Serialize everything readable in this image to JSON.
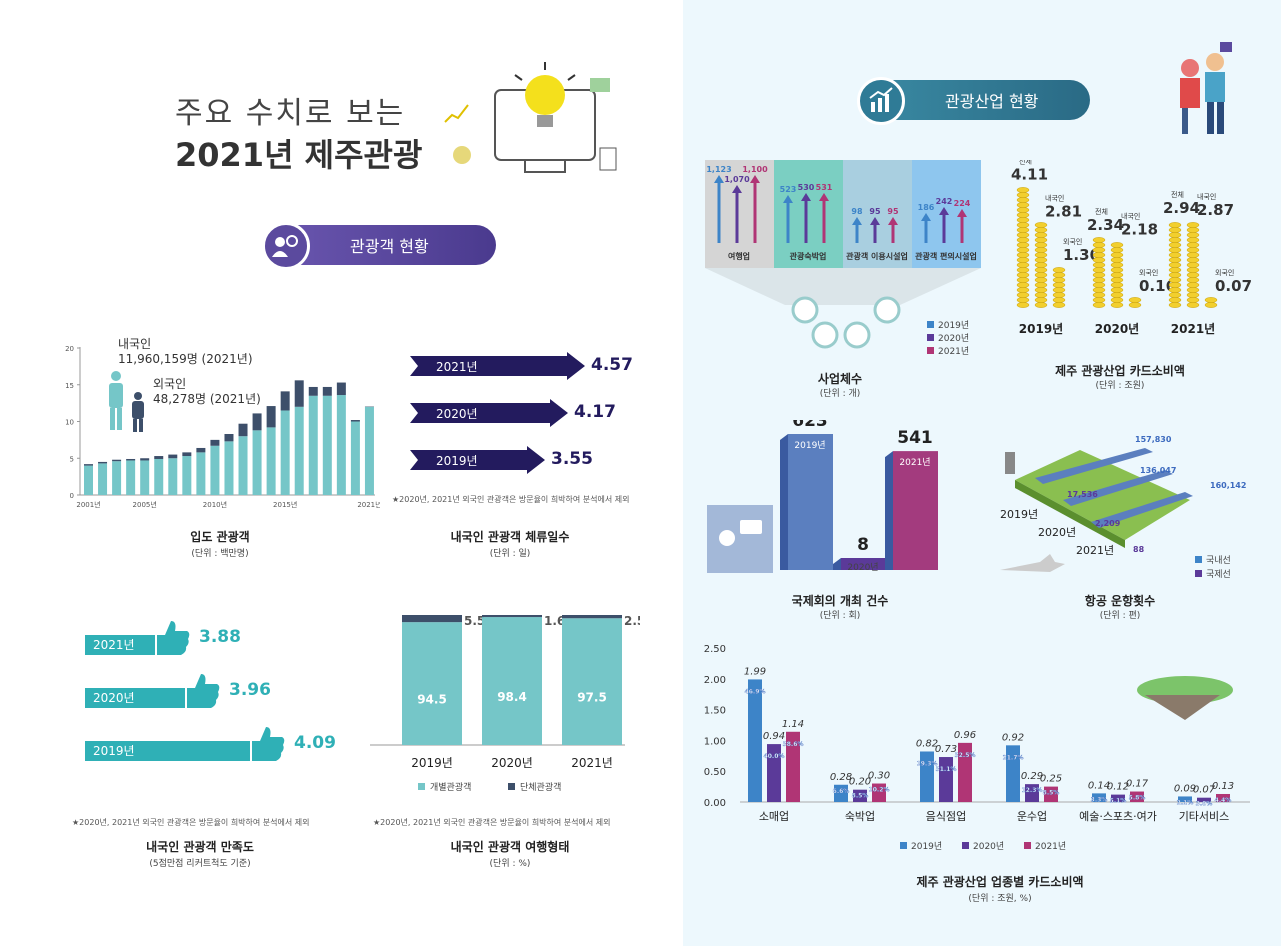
{
  "header": {
    "line1": "주요 수치로 보는",
    "line2": "2021년 제주관광"
  },
  "left_banner": "관광객 현황",
  "right_banner": "관광산업 현황",
  "colors": {
    "teal": "#75c6c8",
    "navy": "#3d4f6a",
    "purple": "#5b4a9e",
    "dark_navy": "#231b5e",
    "blue": "#3d84c8",
    "violet": "#5b3a99",
    "magenta": "#b03575"
  },
  "visitors": {
    "caption": "입도 관광객",
    "unit": "(단위 : 백만명)",
    "domestic_label": "내국인",
    "domestic_value": "11,960,159명 (2021년)",
    "foreign_label": "외국인",
    "foreign_value": "48,278명 (2021년)",
    "yticks": [
      "0",
      "5",
      "10",
      "15",
      "20"
    ],
    "xticks": [
      "2001년",
      "2005년",
      "2010년",
      "2015년",
      "2021년"
    ]
  },
  "chart_data": [
    {
      "type": "bar",
      "title": "입도 관광객",
      "ylabel": "백만명",
      "ylim": [
        0,
        20
      ],
      "categories": [
        "2001",
        "2002",
        "2003",
        "2004",
        "2005",
        "2006",
        "2007",
        "2008",
        "2009",
        "2010",
        "2011",
        "2012",
        "2013",
        "2014",
        "2015",
        "2016",
        "2017",
        "2018",
        "2019",
        "2020",
        "2021"
      ],
      "series": [
        {
          "name": "내국인",
          "values": [
            4.0,
            4.3,
            4.6,
            4.7,
            4.7,
            4.9,
            5.0,
            5.3,
            5.8,
            6.7,
            7.3,
            8.0,
            8.8,
            9.2,
            11.5,
            12.0,
            13.5,
            13.5,
            13.6,
            10.0,
            12.0
          ]
        },
        {
          "name": "외국인",
          "values": [
            0.2,
            0.2,
            0.2,
            0.2,
            0.3,
            0.4,
            0.5,
            0.5,
            0.6,
            0.8,
            1.0,
            1.7,
            2.3,
            2.9,
            2.6,
            3.6,
            1.2,
            1.2,
            1.7,
            0.2,
            0.05
          ]
        }
      ]
    },
    {
      "type": "bar",
      "title": "내국인 관광객 체류일수",
      "categories": [
        "2021년",
        "2020년",
        "2019년"
      ],
      "values": [
        4.57,
        4.17,
        3.55
      ]
    },
    {
      "type": "bar",
      "title": "내국인 관광객 만족도",
      "categories": [
        "2021년",
        "2020년",
        "2019년"
      ],
      "values": [
        3.88,
        3.96,
        4.09
      ]
    },
    {
      "type": "bar",
      "title": "내국인 관광객 여행형태",
      "categories": [
        "2019년",
        "2020년",
        "2021년"
      ],
      "series": [
        {
          "name": "개별관광객",
          "values": [
            94.5,
            98.4,
            97.5
          ]
        },
        {
          "name": "단체관광객",
          "values": [
            5.5,
            1.6,
            2.5
          ]
        }
      ],
      "ylim": [
        0,
        100
      ]
    },
    {
      "type": "bar",
      "title": "사업체수",
      "categories": [
        "여행업",
        "관광숙박업",
        "관광객 이용시설업",
        "관광객 편의시설업"
      ],
      "series": [
        {
          "name": "2019년",
          "values": [
            1123,
            523,
            98,
            186
          ]
        },
        {
          "name": "2020년",
          "values": [
            1070,
            530,
            95,
            242
          ]
        },
        {
          "name": "2021년",
          "values": [
            1100,
            531,
            95,
            224
          ]
        }
      ]
    },
    {
      "type": "bar",
      "title": "제주 관광산업 카드소비액",
      "categories": [
        "2019년",
        "2020년",
        "2021년"
      ],
      "series": [
        {
          "name": "전체",
          "values": [
            4.11,
            2.34,
            2.94
          ]
        },
        {
          "name": "내국인",
          "values": [
            2.81,
            2.18,
            2.87
          ]
        },
        {
          "name": "외국인",
          "values": [
            1.3,
            0.16,
            0.07
          ]
        }
      ]
    },
    {
      "type": "bar",
      "title": "국제회의 개최 건수",
      "categories": [
        "2019년",
        "2020년",
        "2021년"
      ],
      "values": [
        623,
        8,
        541
      ]
    },
    {
      "type": "bar",
      "title": "항공 운항횟수",
      "categories": [
        "2019년",
        "2020년",
        "2021년"
      ],
      "series": [
        {
          "name": "국내선",
          "values": [
            157830,
            136047,
            160142
          ]
        },
        {
          "name": "국제선",
          "values": [
            17536,
            2209,
            88
          ]
        }
      ]
    },
    {
      "type": "bar",
      "title": "제주 관광산업 업종별 카드소비액",
      "ylim": [
        0,
        2.5
      ],
      "categories": [
        "소매업",
        "숙박업",
        "음식점업",
        "운수업",
        "예술·스포츠·여가",
        "기타서비스"
      ],
      "series": [
        {
          "name": "2019년",
          "values": [
            1.99,
            0.28,
            0.82,
            0.92,
            0.14,
            0.09
          ],
          "pct": [
            "46.9%",
            "6.6%",
            "19.3%",
            "21.7%",
            "3.3%",
            "2.1%"
          ]
        },
        {
          "name": "2020년",
          "values": [
            0.94,
            0.2,
            0.73,
            0.29,
            0.12,
            0.07
          ],
          "pct": [
            "40.0%",
            "8.5%",
            "31.1%",
            "12.3%",
            "5.1%",
            "3.0%"
          ]
        },
        {
          "name": "2021년",
          "values": [
            1.14,
            0.3,
            0.96,
            0.25,
            0.17,
            0.13
          ],
          "pct": [
            "38.6%",
            "10.2%",
            "32.5%",
            "8.5%",
            "5.8%",
            "4.4%"
          ]
        }
      ]
    }
  ],
  "stay": {
    "caption": "내국인 관광객 체류일수",
    "unit": "(단위 : 일)",
    "note": "★2020년, 2021년 외국인 관광객은 방문율이 희박하여 분석에서 제외",
    "rows": [
      {
        "year": "2021년",
        "value": "4.57"
      },
      {
        "year": "2020년",
        "value": "4.17"
      },
      {
        "year": "2019년",
        "value": "3.55"
      }
    ]
  },
  "satisfaction": {
    "caption": "내국인 관광객 만족도",
    "unit": "(5점만점 리커트척도 기준)",
    "note": "★2020년, 2021년 외국인 관광객은 방문율이 희박하여 분석에서 제외",
    "rows": [
      {
        "year": "2021년",
        "value": "3.88"
      },
      {
        "year": "2020년",
        "value": "3.96"
      },
      {
        "year": "2019년",
        "value": "4.09"
      }
    ]
  },
  "travel": {
    "caption": "내국인 관광객 여행형태",
    "unit": "(단위 : %)",
    "note": "★2020년, 2021년 외국인 관광객은 방문율이 희박하여 분석에서 제외",
    "legend1": "개별관광객",
    "legend2": "단체관광객",
    "cols": [
      {
        "year": "2019년",
        "ind": "94.5",
        "grp": "5.5"
      },
      {
        "year": "2020년",
        "ind": "98.4",
        "grp": "1.6"
      },
      {
        "year": "2021년",
        "ind": "97.5",
        "grp": "2.5"
      }
    ]
  },
  "business": {
    "caption": "사업체수",
    "unit": "(단위 : 개)",
    "groups": [
      {
        "name": "여행업",
        "vals": [
          "1,123",
          "1,070",
          "1,100"
        ]
      },
      {
        "name": "관광숙박업",
        "vals": [
          "523",
          "530",
          "531"
        ]
      },
      {
        "name": "관광객 이용시설업",
        "vals": [
          "98",
          "95",
          "95"
        ]
      },
      {
        "name": "관광객 편의시설업",
        "vals": [
          "186",
          "242",
          "224"
        ]
      }
    ],
    "legend": [
      "2019년",
      "2020년",
      "2021년"
    ]
  },
  "card": {
    "caption": "제주 관광산업 카드소비액",
    "unit": "(단위 : 조원)",
    "labels": {
      "total": "전체",
      "dom": "내국인",
      "for": "외국인"
    },
    "years": [
      {
        "year": "2019년",
        "total": "4.11",
        "dom": "2.81",
        "for": "1.30"
      },
      {
        "year": "2020년",
        "total": "2.34",
        "dom": "2.18",
        "for": "0.16"
      },
      {
        "year": "2021년",
        "total": "2.94",
        "dom": "2.87",
        "for": "0.07"
      }
    ]
  },
  "conf": {
    "caption": "국제회의 개최 건수",
    "unit": "(단위 : 회)",
    "bars": [
      {
        "year": "2019년",
        "value": "623"
      },
      {
        "year": "2020년",
        "value": "8"
      },
      {
        "year": "2021년",
        "value": "541"
      }
    ]
  },
  "air": {
    "caption": "항공 운항횟수",
    "unit": "(단위 : 편)",
    "years": [
      "2019년",
      "2020년",
      "2021년"
    ],
    "dom": [
      "157,830",
      "136,047",
      "160,142"
    ],
    "intl": [
      "17,536",
      "2,209",
      "88"
    ],
    "legend": [
      "국내선",
      "국제선"
    ]
  },
  "industry": {
    "caption": "제주 관광산업 업종별 카드소비액",
    "unit": "(단위 : 조원, %)",
    "yticks": [
      "0.00",
      "0.50",
      "1.00",
      "1.50",
      "2.00",
      "2.50"
    ],
    "legend": [
      "2019년",
      "2020년",
      "2021년"
    ],
    "vals": [
      [
        "1.99",
        "0.94",
        "1.14"
      ],
      [
        "0.28",
        "0.20",
        "0.30"
      ],
      [
        "0.82",
        "0.73",
        "0.96"
      ],
      [
        "0.92",
        "0.29",
        "0.25"
      ],
      [
        "0.14",
        "0.12",
        "0.17"
      ],
      [
        "0.09",
        "0.07",
        "0.13"
      ]
    ]
  }
}
